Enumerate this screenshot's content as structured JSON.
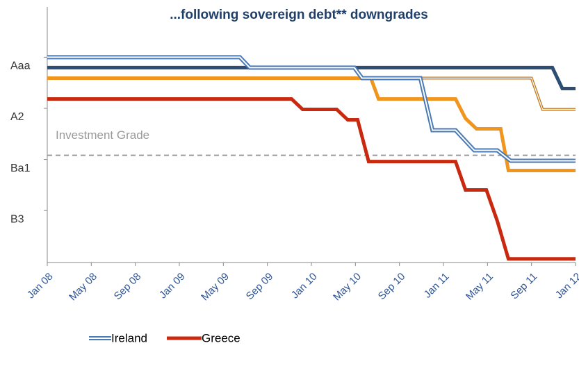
{
  "chart_data": {
    "type": "line",
    "title": "...following sovereign debt** downgrades",
    "xlim": [
      0,
      48
    ],
    "xticks": [
      {
        "value": 0,
        "label": "Jan 08"
      },
      {
        "value": 4,
        "label": "May 08"
      },
      {
        "value": 8,
        "label": "Sep 08"
      },
      {
        "value": 12,
        "label": "Jan 09"
      },
      {
        "value": 16,
        "label": "May 09"
      },
      {
        "value": 20,
        "label": "Sep 09"
      },
      {
        "value": 24,
        "label": "Jan 10"
      },
      {
        "value": 28,
        "label": "May 10"
      },
      {
        "value": 32,
        "label": "Sep 10"
      },
      {
        "value": 36,
        "label": "Jan 11"
      },
      {
        "value": 40,
        "label": "May 11"
      },
      {
        "value": 44,
        "label": "Sep 11"
      },
      {
        "value": 48,
        "label": "Jan 12"
      }
    ],
    "ylim": [
      -4.8,
      20.2
    ],
    "y_reversed": true,
    "yticks": [
      {
        "value": 1,
        "label": "Aaa"
      },
      {
        "value": 6,
        "label": "A2"
      },
      {
        "value": 11,
        "label": "Ba1"
      },
      {
        "value": 16,
        "label": "B3"
      }
    ],
    "annotations": [
      {
        "text": "Investment Grade",
        "value": 9.71
      }
    ],
    "series": [
      {
        "color": "#2e4d73",
        "x": [
          0,
          45.9,
          46.8,
          48
        ],
        "values": [
          1.14,
          1.14,
          3.18,
          3.18
        ]
      },
      {
        "color": "#c07a20",
        "double": true,
        "x": [
          29.4,
          44,
          45,
          48
        ],
        "values": [
          2.16,
          2.16,
          5.22,
          5.22
        ]
      },
      {
        "color": "#f0961e",
        "x": [
          0,
          29.4,
          30.1,
          37.1,
          38,
          39,
          41.2,
          41.9,
          48
        ],
        "values": [
          2.16,
          2.16,
          4.2,
          4.2,
          6.1,
          7.12,
          7.12,
          11.2,
          11.2
        ]
      },
      {
        "name": "Ireland",
        "color": "#4a7ab5",
        "double": true,
        "x": [
          0,
          17.5,
          18.4,
          27.9,
          28.6,
          33.9,
          35,
          37.1,
          38.8,
          40.9,
          42.1,
          48
        ],
        "values": [
          0.12,
          0.12,
          1.14,
          1.14,
          2.16,
          2.16,
          7.26,
          7.26,
          9.23,
          9.23,
          10.25,
          10.25
        ]
      },
      {
        "name": "Greece",
        "color": "#c8290f",
        "x": [
          0,
          22.2,
          23.2,
          26.3,
          27.3,
          28.2,
          29.2,
          37.1,
          38,
          39.9,
          40.9,
          41.9,
          48
        ],
        "values": [
          4.2,
          4.2,
          5.22,
          5.22,
          6.24,
          6.24,
          10.32,
          10.32,
          13.1,
          13.1,
          16.17,
          19.84,
          19.84
        ]
      }
    ]
  }
}
